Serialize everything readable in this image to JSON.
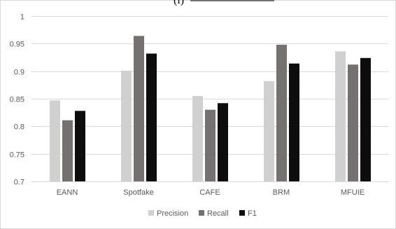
{
  "chart_data": {
    "type": "bar",
    "title": "(l)",
    "categories": [
      "EANN",
      "Spotfake",
      "CAFE",
      "BRM",
      "MFUIE"
    ],
    "series": [
      {
        "name": "Precision",
        "color": "#d0d0d0",
        "values": [
          0.847,
          0.901,
          0.855,
          0.882,
          0.936
        ]
      },
      {
        "name": "Recall",
        "color": "#767171",
        "values": [
          0.811,
          0.964,
          0.83,
          0.948,
          0.912
        ]
      },
      {
        "name": "F1",
        "color": "#0d0d0d",
        "values": [
          0.828,
          0.932,
          0.842,
          0.914,
          0.924
        ]
      }
    ],
    "ylim": [
      0.7,
      1.0
    ],
    "yticks": [
      0.7,
      0.75,
      0.8,
      0.85,
      0.9,
      0.95,
      1.0
    ],
    "ytick_labels": [
      "0.7",
      "0.75",
      "0.8",
      "0.85",
      "0.9",
      "0.95",
      "1"
    ],
    "grid": true,
    "legend_position": "bottom",
    "xlabel": "",
    "ylabel": ""
  }
}
